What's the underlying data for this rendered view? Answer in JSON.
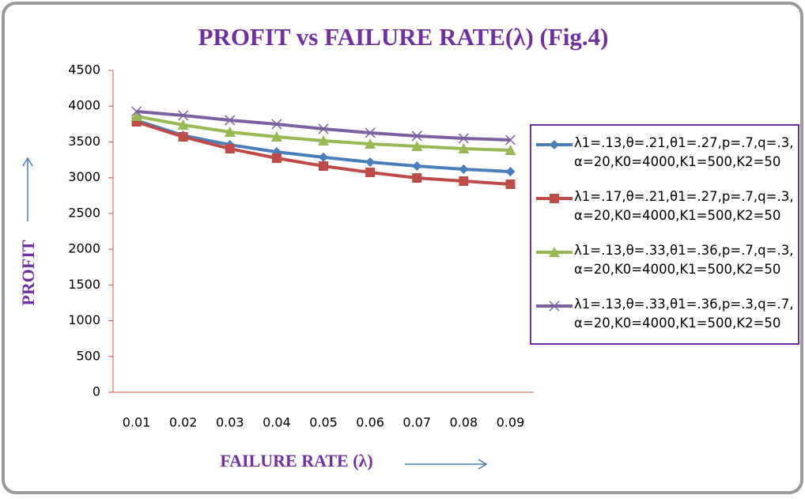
{
  "chart_data": {
    "type": "line",
    "title": "PROFIT vs FAILURE RATE(λ)  (Fig.4)",
    "x_label": "FAILURE RATE (λ)",
    "y_label": "PROFIT",
    "categories": [
      "0.01",
      "0.02",
      "0.03",
      "0.04",
      "0.05",
      "0.06",
      "0.07",
      "0.08",
      "0.09"
    ],
    "ylim": [
      0,
      4500
    ],
    "yticks": [
      0,
      500,
      1000,
      1500,
      2000,
      2500,
      3000,
      3500,
      4000,
      4500
    ],
    "grid": false,
    "legend": "right",
    "series": [
      {
        "name": "λ1=.13,θ=.21,θ1=.27,p=.7,q=.3,\nα=20,K0=4000,K1=500,K2=50",
        "color": "#4a7ebb",
        "marker": "diamond",
        "values": [
          3800,
          3590,
          3460,
          3360,
          3285,
          3217,
          3162,
          3118,
          3085
        ]
      },
      {
        "name": "λ1=.17,θ=.21,θ1=.27,p=.7,q=.3,\nα=20,K0=4000,K1=500,K2=50",
        "color": "#be4b48",
        "marker": "square",
        "values": [
          3780,
          3571,
          3405,
          3273,
          3162,
          3074,
          2996,
          2952,
          2908
        ]
      },
      {
        "name": "λ1=.13,θ=.33,θ1=.36,p=.7,q=.3,\nα=20,K0=4000,K1=500,K2=50",
        "color": "#98b954",
        "marker": "triangle",
        "values": [
          3859,
          3737,
          3638,
          3571,
          3516,
          3472,
          3439,
          3405,
          3383
        ]
      },
      {
        "name": "λ1=.13,θ=.33,θ1=.36,p=.3,q=.7,\nα=20,K0=4000,K1=500,K2=50",
        "color": "#7d60a0",
        "marker": "x",
        "values": [
          3925,
          3870,
          3803,
          3748,
          3682,
          3627,
          3582,
          3549,
          3527
        ]
      }
    ]
  }
}
